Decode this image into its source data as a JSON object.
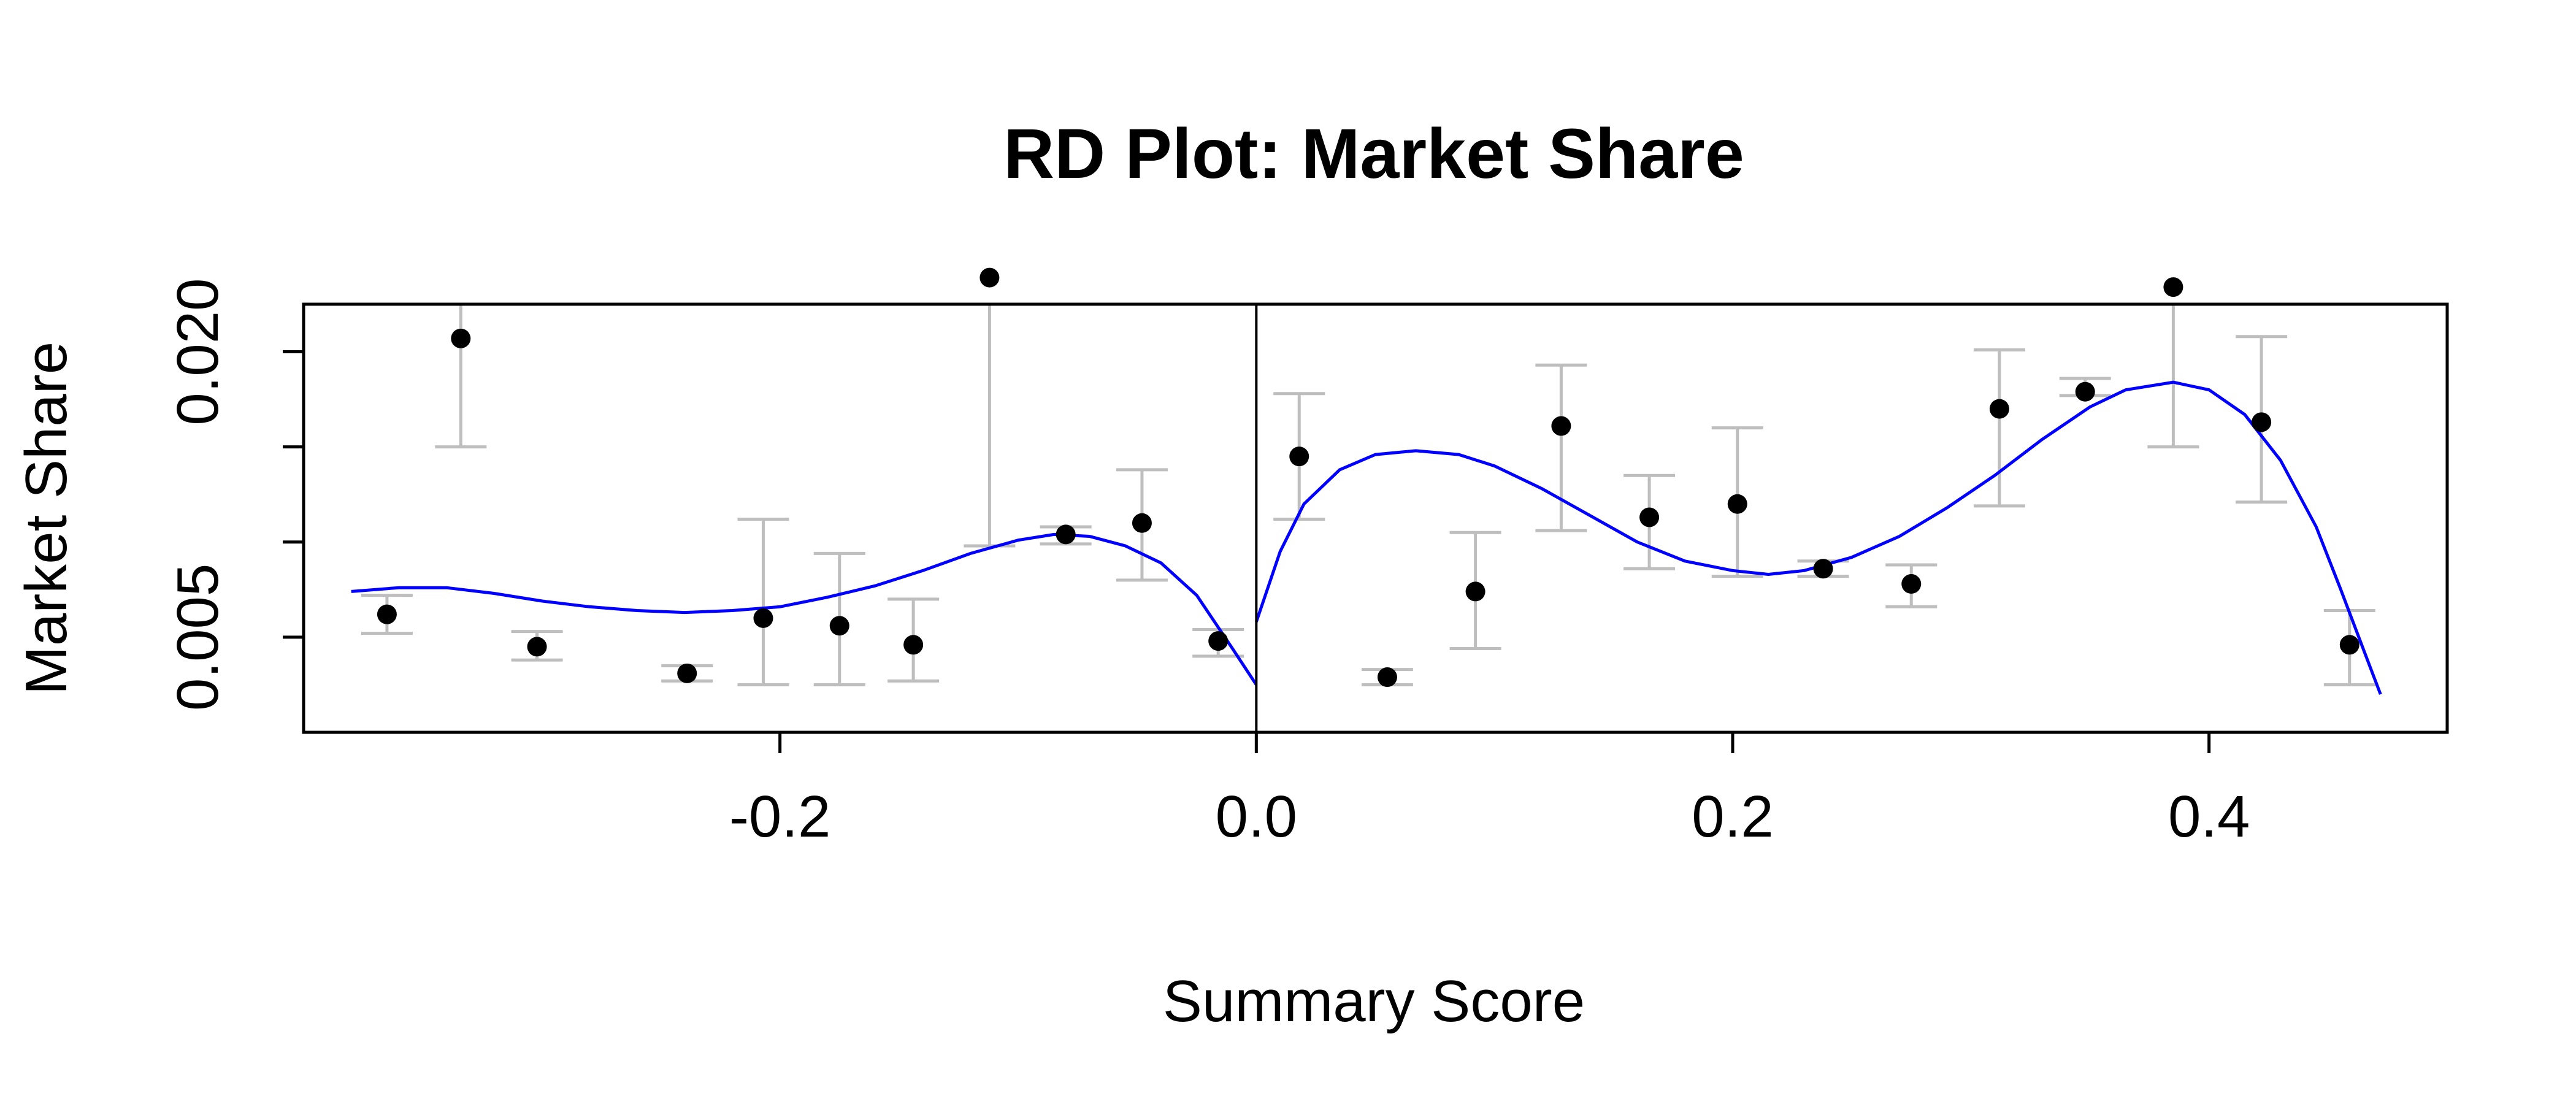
{
  "chart_data": {
    "type": "scatter",
    "title": "RD Plot: Market Share",
    "xlabel": "Summary Score",
    "ylabel": "Market Share",
    "xlim": [
      -0.4,
      0.5
    ],
    "ylim": [
      0.0,
      0.0225
    ],
    "x_ticks": [
      {
        "value": -0.2,
        "label": "-0.2"
      },
      {
        "value": 0.0,
        "label": "0.0"
      },
      {
        "value": 0.2,
        "label": "0.2"
      },
      {
        "value": 0.4,
        "label": "0.4"
      }
    ],
    "y_ticks": [
      {
        "value": 0.005,
        "label": "0.005"
      },
      {
        "value": 0.01,
        "label": ""
      },
      {
        "value": 0.015,
        "label": ""
      },
      {
        "value": 0.02,
        "label": "0.020"
      }
    ],
    "cutoff": 0.0,
    "grid": false,
    "legend": "none",
    "colors": {
      "points": "#000000",
      "error_bars": "#bebebe",
      "fit": "#0000ff",
      "axes": "#000000"
    },
    "points": [
      {
        "x": -0.365,
        "y": 0.0062,
        "lo": 0.0052,
        "hi": 0.0072
      },
      {
        "x": -0.334,
        "y": 0.0207,
        "lo": 0.015,
        "hi": 0.025
      },
      {
        "x": -0.302,
        "y": 0.0045,
        "lo": 0.0038,
        "hi": 0.0053
      },
      {
        "x": -0.239,
        "y": 0.0031,
        "lo": 0.0027,
        "hi": 0.0035
      },
      {
        "x": -0.207,
        "y": 0.006,
        "lo": 0.0025,
        "hi": 0.0112
      },
      {
        "x": -0.175,
        "y": 0.0056,
        "lo": 0.0025,
        "hi": 0.0094
      },
      {
        "x": -0.144,
        "y": 0.0046,
        "lo": 0.0027,
        "hi": 0.007
      },
      {
        "x": -0.112,
        "y": 0.0239,
        "lo": 0.0098,
        "hi": 0.025
      },
      {
        "x": -0.08,
        "y": 0.0104,
        "lo": 0.0099,
        "hi": 0.0108
      },
      {
        "x": -0.048,
        "y": 0.011,
        "lo": 0.008,
        "hi": 0.0138
      },
      {
        "x": -0.016,
        "y": 0.0048,
        "lo": 0.004,
        "hi": 0.0054
      },
      {
        "x": 0.018,
        "y": 0.0145,
        "lo": 0.0112,
        "hi": 0.0178
      },
      {
        "x": 0.055,
        "y": 0.0029,
        "lo": 0.0025,
        "hi": 0.0033
      },
      {
        "x": 0.092,
        "y": 0.0074,
        "lo": 0.0044,
        "hi": 0.0105
      },
      {
        "x": 0.128,
        "y": 0.0161,
        "lo": 0.0106,
        "hi": 0.0193
      },
      {
        "x": 0.165,
        "y": 0.0113,
        "lo": 0.0086,
        "hi": 0.0135
      },
      {
        "x": 0.202,
        "y": 0.012,
        "lo": 0.0082,
        "hi": 0.016
      },
      {
        "x": 0.238,
        "y": 0.0086,
        "lo": 0.0082,
        "hi": 0.009
      },
      {
        "x": 0.275,
        "y": 0.0078,
        "lo": 0.0066,
        "hi": 0.0088
      },
      {
        "x": 0.312,
        "y": 0.017,
        "lo": 0.0119,
        "hi": 0.0201
      },
      {
        "x": 0.348,
        "y": 0.0179,
        "lo": 0.0177,
        "hi": 0.0186
      },
      {
        "x": 0.385,
        "y": 0.0234,
        "lo": 0.015,
        "hi": 0.025
      },
      {
        "x": 0.422,
        "y": 0.0163,
        "lo": 0.0121,
        "hi": 0.0208
      },
      {
        "x": 0.459,
        "y": 0.0046,
        "lo": 0.0025,
        "hi": 0.0064
      }
    ],
    "fit_left": [
      [
        -0.38,
        0.0074
      ],
      [
        -0.36,
        0.0076
      ],
      [
        -0.34,
        0.0076
      ],
      [
        -0.32,
        0.0073
      ],
      [
        -0.3,
        0.0069
      ],
      [
        -0.28,
        0.0066
      ],
      [
        -0.26,
        0.0064
      ],
      [
        -0.24,
        0.0063
      ],
      [
        -0.22,
        0.0064
      ],
      [
        -0.2,
        0.0066
      ],
      [
        -0.18,
        0.0071
      ],
      [
        -0.16,
        0.0077
      ],
      [
        -0.14,
        0.0085
      ],
      [
        -0.12,
        0.0094
      ],
      [
        -0.1,
        0.0101
      ],
      [
        -0.085,
        0.0104
      ],
      [
        -0.07,
        0.0103
      ],
      [
        -0.055,
        0.0098
      ],
      [
        -0.04,
        0.0089
      ],
      [
        -0.025,
        0.0072
      ],
      [
        -0.01,
        0.0044
      ],
      [
        0.0,
        0.0025
      ]
    ],
    "fit_right": [
      [
        0.0,
        0.0058
      ],
      [
        0.01,
        0.0095
      ],
      [
        0.02,
        0.012
      ],
      [
        0.035,
        0.0138
      ],
      [
        0.05,
        0.0146
      ],
      [
        0.067,
        0.0148
      ],
      [
        0.085,
        0.0146
      ],
      [
        0.1,
        0.014
      ],
      [
        0.12,
        0.0128
      ],
      [
        0.14,
        0.0114
      ],
      [
        0.16,
        0.01
      ],
      [
        0.18,
        0.009
      ],
      [
        0.2,
        0.0085
      ],
      [
        0.215,
        0.0083
      ],
      [
        0.23,
        0.0085
      ],
      [
        0.25,
        0.0092
      ],
      [
        0.27,
        0.0103
      ],
      [
        0.29,
        0.0118
      ],
      [
        0.31,
        0.0135
      ],
      [
        0.33,
        0.0154
      ],
      [
        0.35,
        0.0171
      ],
      [
        0.365,
        0.018
      ],
      [
        0.385,
        0.0184
      ],
      [
        0.4,
        0.018
      ],
      [
        0.415,
        0.0167
      ],
      [
        0.43,
        0.0143
      ],
      [
        0.445,
        0.0108
      ],
      [
        0.455,
        0.0076
      ],
      [
        0.465,
        0.0043
      ],
      [
        0.472,
        0.002
      ]
    ]
  }
}
